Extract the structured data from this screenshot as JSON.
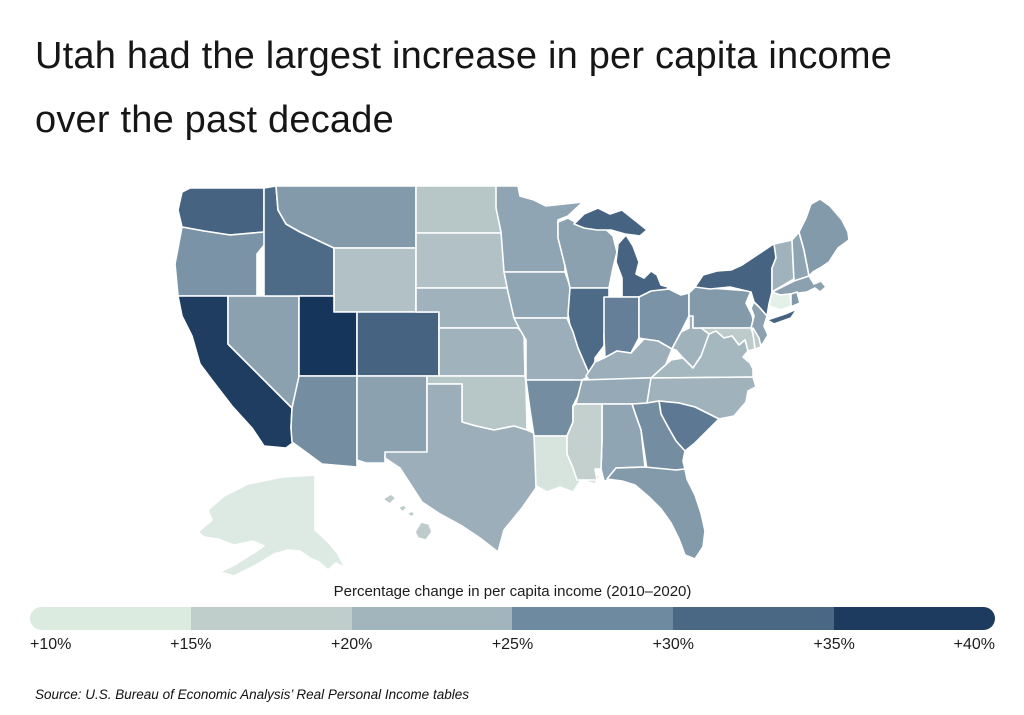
{
  "title": {
    "line1": "Utah had the largest increase in per capita income",
    "line2": "over the past decade"
  },
  "legend": {
    "title": "Percentage change in per capita income (2010–2020)",
    "labels": [
      "+10%",
      "+15%",
      "+20%",
      "+25%",
      "+30%",
      "+35%",
      "+40%"
    ],
    "segment_colors": [
      "#dcebe0",
      "#c0cecb",
      "#a2b4bc",
      "#6e8aa0",
      "#4a6883",
      "#1d3b5e"
    ]
  },
  "source": "Source:  U.S. Bureau of Economic Analysis’ Real Personal Income tables",
  "chart_data": {
    "type": "choropleth-map",
    "title": "Utah had the largest increase in per capita income over the past decade",
    "metric": "Percentage change in per capita income (2010–2020)",
    "unit": "%",
    "scale": {
      "min": 10,
      "max": 40,
      "tick_labels": [
        "+10%",
        "+15%",
        "+20%",
        "+25%",
        "+30%",
        "+35%",
        "+40%"
      ],
      "stops": [
        {
          "value": 10,
          "color": "#e4f1e9"
        },
        {
          "value": 15,
          "color": "#c3d0cd"
        },
        {
          "value": 20,
          "color": "#a5b7bf"
        },
        {
          "value": 25,
          "color": "#8ba1b0"
        },
        {
          "value": 30,
          "color": "#647f97"
        },
        {
          "value": 35,
          "color": "#3e5d7d"
        },
        {
          "value": 40,
          "color": "#16355a"
        }
      ]
    },
    "states": [
      {
        "abbr": "AL",
        "name": "Alabama",
        "value": 24
      },
      {
        "abbr": "AK",
        "name": "Alaska",
        "value": 11
      },
      {
        "abbr": "AZ",
        "name": "Arizona",
        "value": 28
      },
      {
        "abbr": "AR",
        "name": "Arkansas",
        "value": 28
      },
      {
        "abbr": "CA",
        "name": "California",
        "value": 39
      },
      {
        "abbr": "CO",
        "name": "Colorado",
        "value": 34
      },
      {
        "abbr": "CT",
        "name": "Connecticut",
        "value": 10
      },
      {
        "abbr": "DE",
        "name": "Delaware",
        "value": 16
      },
      {
        "abbr": "FL",
        "name": "Florida",
        "value": 26
      },
      {
        "abbr": "GA",
        "name": "Georgia",
        "value": 28
      },
      {
        "abbr": "HI",
        "name": "Hawaii",
        "value": 16
      },
      {
        "abbr": "ID",
        "name": "Idaho",
        "value": 33
      },
      {
        "abbr": "IL",
        "name": "Illinois",
        "value": 33
      },
      {
        "abbr": "IN",
        "name": "Indiana",
        "value": 30
      },
      {
        "abbr": "IA",
        "name": "Iowa",
        "value": 24
      },
      {
        "abbr": "KS",
        "name": "Kansas",
        "value": 21
      },
      {
        "abbr": "KY",
        "name": "Kentucky",
        "value": 22
      },
      {
        "abbr": "LA",
        "name": "Louisiana",
        "value": 12
      },
      {
        "abbr": "ME",
        "name": "Maine",
        "value": 26
      },
      {
        "abbr": "MD",
        "name": "Maryland",
        "value": 16
      },
      {
        "abbr": "MA",
        "name": "Massachusetts",
        "value": 25
      },
      {
        "abbr": "MI",
        "name": "Michigan",
        "value": 34
      },
      {
        "abbr": "MN",
        "name": "Minnesota",
        "value": 24
      },
      {
        "abbr": "MS",
        "name": "Mississippi",
        "value": 15
      },
      {
        "abbr": "MO",
        "name": "Missouri",
        "value": 22
      },
      {
        "abbr": "MT",
        "name": "Montana",
        "value": 26
      },
      {
        "abbr": "NE",
        "name": "Nebraska",
        "value": 21
      },
      {
        "abbr": "NV",
        "name": "Nevada",
        "value": 25
      },
      {
        "abbr": "NH",
        "name": "New Hampshire",
        "value": 24
      },
      {
        "abbr": "NJ",
        "name": "New Jersey",
        "value": 25
      },
      {
        "abbr": "NM",
        "name": "New Mexico",
        "value": 25
      },
      {
        "abbr": "NY",
        "name": "New York",
        "value": 34
      },
      {
        "abbr": "NC",
        "name": "North Carolina",
        "value": 21
      },
      {
        "abbr": "ND",
        "name": "North Dakota",
        "value": 17
      },
      {
        "abbr": "OH",
        "name": "Ohio",
        "value": 27
      },
      {
        "abbr": "OK",
        "name": "Oklahoma",
        "value": 17
      },
      {
        "abbr": "OR",
        "name": "Oregon",
        "value": 27
      },
      {
        "abbr": "PA",
        "name": "Pennsylvania",
        "value": 26
      },
      {
        "abbr": "RI",
        "name": "Rhode Island",
        "value": 26
      },
      {
        "abbr": "SC",
        "name": "South Carolina",
        "value": 31
      },
      {
        "abbr": "SD",
        "name": "South Dakota",
        "value": 18
      },
      {
        "abbr": "TN",
        "name": "Tennessee",
        "value": 23
      },
      {
        "abbr": "TX",
        "name": "Texas",
        "value": 22
      },
      {
        "abbr": "UT",
        "name": "Utah",
        "value": 40
      },
      {
        "abbr": "VT",
        "name": "Vermont",
        "value": 21
      },
      {
        "abbr": "VA",
        "name": "Virginia",
        "value": 20
      },
      {
        "abbr": "WA",
        "name": "Washington",
        "value": 34
      },
      {
        "abbr": "WV",
        "name": "West Virginia",
        "value": 21
      },
      {
        "abbr": "WI",
        "name": "Wisconsin",
        "value": 25
      },
      {
        "abbr": "WY",
        "name": "Wyoming",
        "value": 18
      }
    ]
  }
}
